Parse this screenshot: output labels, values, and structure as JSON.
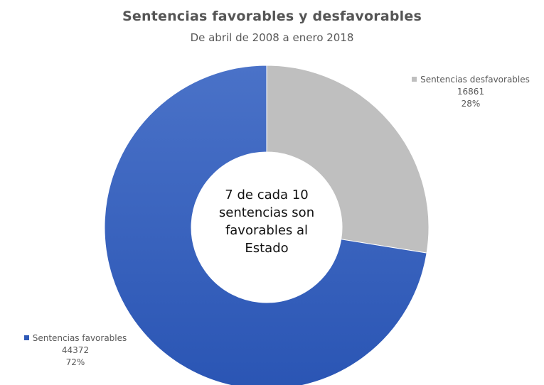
{
  "chart_data": {
    "type": "pie",
    "title": "Sentencias favorables y desfavorables",
    "subtitle": "De abril de 2008 a enero 2018",
    "center_text": [
      "7 de cada 10",
      "sentencias son",
      "favorables al",
      "Estado"
    ],
    "slices": [
      {
        "name": "Sentencias desfavorables",
        "value": 16861,
        "value_label": "16861",
        "percent_label": "28%",
        "color": "#bfbfbf"
      },
      {
        "name": "Sentencias favorables",
        "value": 44372,
        "value_label": "44372",
        "percent_label": "72%",
        "color": "#2e59b7"
      }
    ]
  }
}
